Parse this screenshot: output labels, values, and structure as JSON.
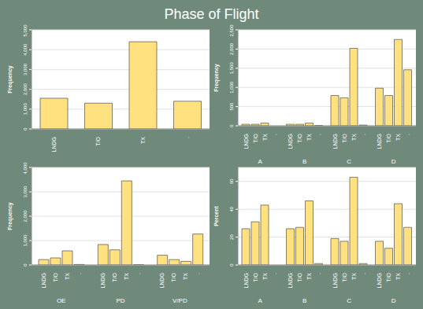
{
  "title": "Phase of Flight",
  "chart_data": [
    {
      "type": "bar",
      "ylabel": "Frequency",
      "categories": [
        "LNDG",
        "T/O",
        "TX",
        "."
      ],
      "values": [
        1550,
        1300,
        4400,
        1400
      ],
      "color": "#ffe17f",
      "ylim": [
        0,
        5000
      ],
      "yticks": [
        0,
        {
          "value": 1000,
          "label": "1,000"
        },
        {
          "value": 2000,
          "label": "2,000"
        },
        {
          "value": 3000,
          "label": "3,000"
        },
        {
          "value": 4000,
          "label": "4,000"
        },
        {
          "value": 5000,
          "label": "5,000"
        }
      ],
      "grid": true
    },
    {
      "type": "bar",
      "ylabel": "Frequency",
      "categories": [
        "A",
        "B",
        "C",
        "D"
      ],
      "series": [
        {
          "name": "LNDG",
          "color": "#ffe17f",
          "values": [
            40,
            40,
            790,
            980
          ]
        },
        {
          "name": "T/O",
          "color": "#ffe17f",
          "values": [
            40,
            40,
            730,
            790
          ]
        },
        {
          "name": "TX",
          "color": "#ffe17f",
          "values": [
            70,
            70,
            2020,
            2250
          ]
        },
        {
          "name": ".",
          "color": "#ffe17f",
          "values": [
            0,
            10,
            20,
            1460
          ]
        }
      ],
      "ylim": [
        0,
        2500
      ],
      "yticks": [
        0,
        500,
        {
          "value": 1000,
          "label": "1,000"
        },
        {
          "value": 1500,
          "label": "1,500"
        },
        {
          "value": 2000,
          "label": "2,000"
        },
        {
          "value": 2500,
          "label": "2,500"
        }
      ],
      "grid": true
    },
    {
      "type": "bar",
      "ylabel": "Frequency",
      "categories": [
        "OE",
        "PD",
        "V/PD"
      ],
      "series": [
        {
          "name": "LNDG",
          "color": "#ffe17f",
          "values": [
            220,
            840,
            400
          ]
        },
        {
          "name": "T/O",
          "color": "#ffe17f",
          "values": [
            290,
            620,
            220
          ]
        },
        {
          "name": "TX",
          "color": "#ffe17f",
          "values": [
            580,
            3450,
            150
          ]
        },
        {
          "name": ".",
          "color": "#ffe17f",
          "values": [
            20,
            10,
            1270
          ]
        }
      ],
      "ylim": [
        0,
        4000
      ],
      "yticks": [
        0,
        {
          "value": 1000,
          "label": "1,000"
        },
        {
          "value": 2000,
          "label": "2,000"
        },
        {
          "value": 3000,
          "label": "3,000"
        },
        {
          "value": 4000,
          "label": "4,000"
        }
      ],
      "grid": true
    },
    {
      "type": "bar",
      "ylabel": "Percent",
      "categories": [
        "A",
        "B",
        "C",
        "D"
      ],
      "series": [
        {
          "name": "LNDG",
          "color": "#ffe17f",
          "values": [
            26,
            26,
            19,
            17
          ]
        },
        {
          "name": "T/O",
          "color": "#ffe17f",
          "values": [
            31,
            27,
            17,
            12
          ]
        },
        {
          "name": "TX",
          "color": "#ffe17f",
          "values": [
            43,
            46,
            63,
            44
          ]
        },
        {
          "name": ".",
          "color": "#ffe17f",
          "values": [
            0,
            1,
            1,
            27
          ]
        }
      ],
      "ylim": [
        0,
        70
      ],
      "yticks": [
        0,
        20,
        40,
        60
      ],
      "grid": true
    }
  ]
}
